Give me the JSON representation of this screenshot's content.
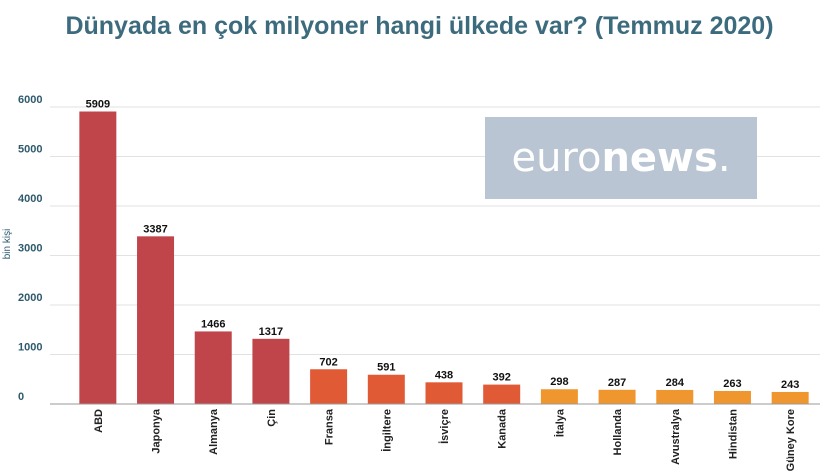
{
  "title": "Dünyada en çok milyoner hangi ülkede var? (Temmuz 2020)",
  "logo": {
    "light": "euro",
    "bold": "news",
    "dot": "."
  },
  "chart_data": {
    "type": "bar",
    "title": "Dünyada en çok milyoner hangi ülkede var? (Temmuz 2020)",
    "xlabel": "",
    "ylabel": "bin kişi",
    "ylim": [
      0,
      6000
    ],
    "yticks": [
      0,
      1000,
      2000,
      3000,
      4000,
      5000,
      6000
    ],
    "grid": true,
    "categories": [
      "ABD",
      "Japonya",
      "Almanya",
      "Çin",
      "Fransa",
      "İngiltere",
      "İsviçre",
      "Kanada",
      "İtalya",
      "Hollanda",
      "Avustralya",
      "Hindistan",
      "Güney Kore"
    ],
    "values": [
      5909,
      3387,
      1466,
      1317,
      702,
      591,
      438,
      392,
      298,
      287,
      284,
      263,
      243
    ],
    "colors": [
      "#c0454a",
      "#c0454a",
      "#c0454a",
      "#c0454a",
      "#e05a36",
      "#e05a36",
      "#e05a36",
      "#e05a36",
      "#f0962e",
      "#f0962e",
      "#f0962e",
      "#f0962e",
      "#f0962e"
    ]
  }
}
